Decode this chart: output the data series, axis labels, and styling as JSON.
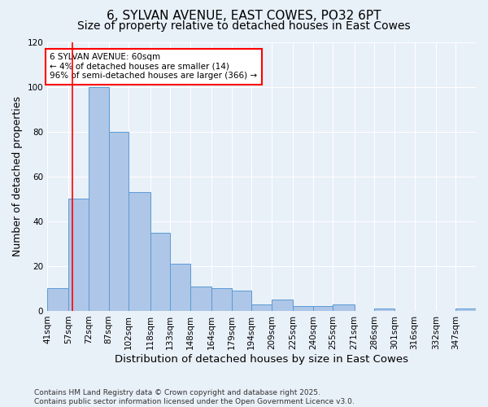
{
  "title_line1": "6, SYLVAN AVENUE, EAST COWES, PO32 6PT",
  "title_line2": "Size of property relative to detached houses in East Cowes",
  "xlabel": "Distribution of detached houses by size in East Cowes",
  "ylabel": "Number of detached properties",
  "footnote": "Contains HM Land Registry data © Crown copyright and database right 2025.\nContains public sector information licensed under the Open Government Licence v3.0.",
  "bar_edges": [
    41,
    57,
    72,
    87,
    102,
    118,
    133,
    148,
    164,
    179,
    194,
    209,
    225,
    240,
    255,
    271,
    286,
    301,
    316,
    332,
    347
  ],
  "bar_heights": [
    10,
    50,
    100,
    80,
    53,
    35,
    21,
    11,
    10,
    9,
    3,
    5,
    2,
    2,
    3,
    0,
    1,
    0,
    0,
    0,
    1
  ],
  "bar_color": "#aec6e8",
  "bar_edge_color": "#5b9bd5",
  "red_line_x": 60,
  "annotation_text": "6 SYLVAN AVENUE: 60sqm\n← 4% of detached houses are smaller (14)\n96% of semi-detached houses are larger (366) →",
  "annotation_box_color": "white",
  "annotation_border_color": "red",
  "ylim": [
    0,
    120
  ],
  "yticks": [
    0,
    20,
    40,
    60,
    80,
    100,
    120
  ],
  "background_color": "#e8f0f8",
  "plot_bg_color": "#e8f0f8",
  "grid_color": "white",
  "title_fontsize": 11,
  "subtitle_fontsize": 10,
  "axis_label_fontsize": 9,
  "tick_fontsize": 7.5,
  "footnote_fontsize": 6.5
}
